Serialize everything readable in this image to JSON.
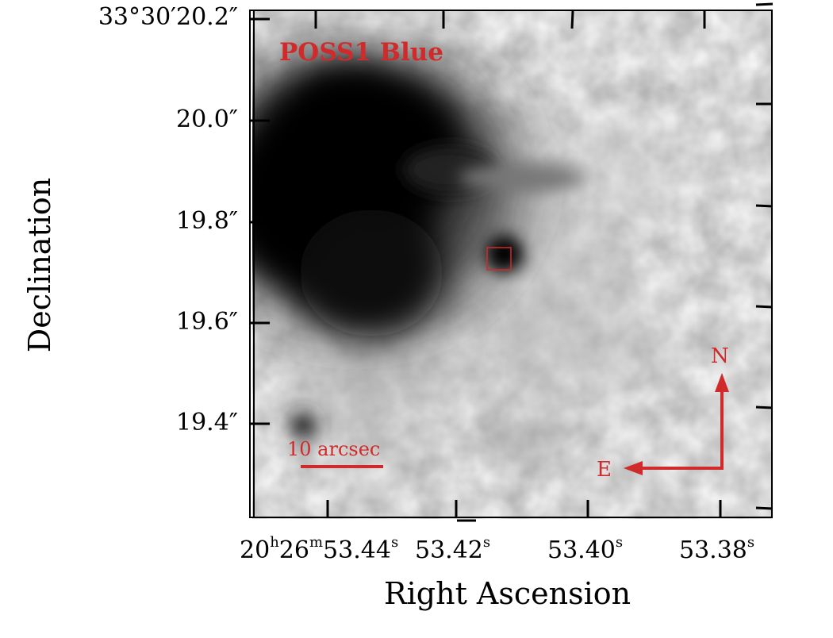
{
  "figure": {
    "survey_label": "POSS1 Blue",
    "xlabel": "Right Ascension",
    "ylabel": "Declination",
    "scale_bar_label": "10 arcsec",
    "compass": {
      "north": "N",
      "east": "E"
    },
    "dec_ticks": [
      {
        "prefix": "33°30′",
        "value": "20.2″"
      },
      {
        "prefix": "",
        "value": "20.0″"
      },
      {
        "prefix": "",
        "value": "19.8″"
      },
      {
        "prefix": "",
        "value": "19.6″"
      },
      {
        "prefix": "",
        "value": "19.4″"
      }
    ],
    "ra_ticks": [
      {
        "h": "20",
        "m": "26",
        "s": "53.44"
      },
      {
        "s": "53.42"
      },
      {
        "s": "53.40"
      },
      {
        "s": "53.38"
      }
    ],
    "colors": {
      "accent": "#d12a2a",
      "axis": "#000000"
    }
  }
}
